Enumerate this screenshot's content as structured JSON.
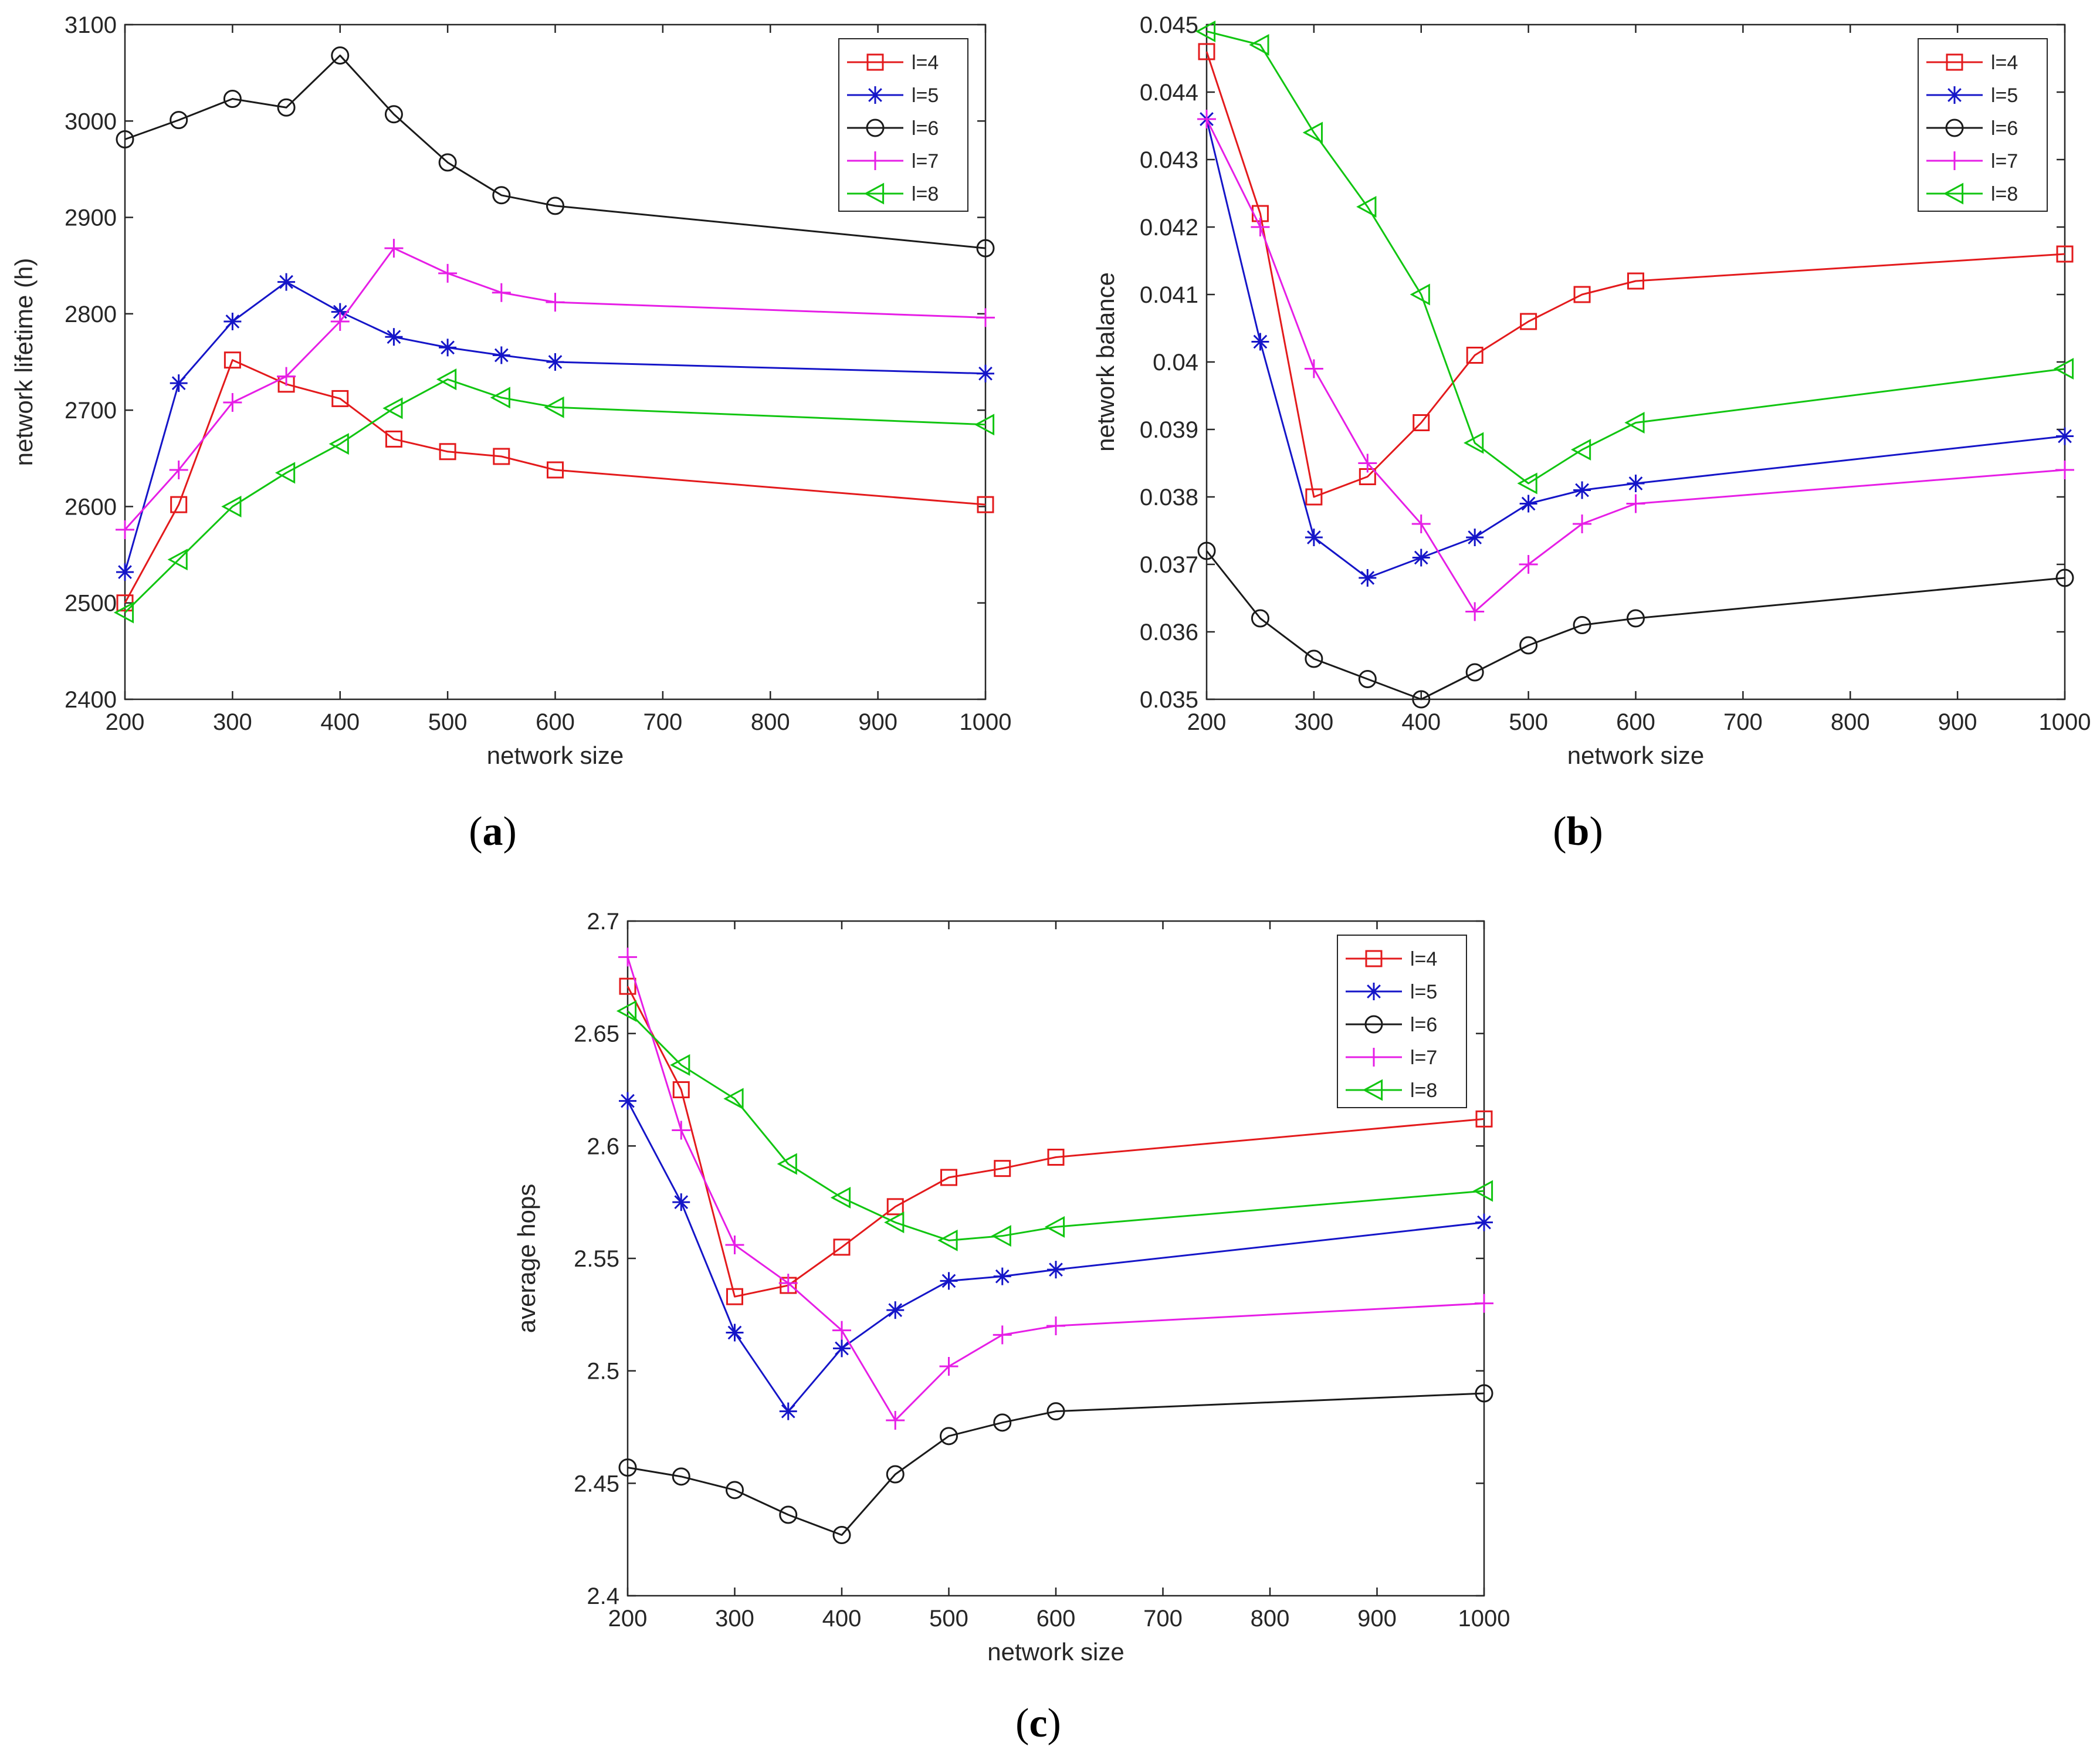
{
  "chart_data": [
    {
      "id": "a",
      "type": "line",
      "caption": "a",
      "xlabel": "network size",
      "ylabel": "network lifetime (h)",
      "xlim": [
        200,
        1000
      ],
      "ylim": [
        2400,
        3100
      ],
      "xticks": [
        200,
        300,
        400,
        500,
        600,
        700,
        800,
        900,
        1000
      ],
      "yticks": [
        2400,
        2500,
        2600,
        2700,
        2800,
        2900,
        3000,
        3100
      ],
      "ytick_labels": [
        "2400",
        "2500",
        "2600",
        "2700",
        "2800",
        "2900",
        "3000",
        "3100"
      ],
      "legend": "top-right",
      "x": [
        200,
        250,
        300,
        350,
        400,
        450,
        500,
        550,
        600,
        1000
      ],
      "series": [
        {
          "name": "l=4",
          "color": "#e31a1c",
          "marker": "square",
          "values": [
            2500,
            2602,
            2752,
            2727,
            2712,
            2670,
            2657,
            2652,
            2638,
            2602
          ]
        },
        {
          "name": "l=5",
          "color": "#1515c8",
          "marker": "star",
          "values": [
            2532,
            2728,
            2792,
            2833,
            2802,
            2776,
            2765,
            2757,
            2750,
            2738
          ]
        },
        {
          "name": "l=6",
          "color": "#1a1a1a",
          "marker": "circle",
          "values": [
            2981,
            3001,
            3023,
            3014,
            3068,
            3007,
            2957,
            2923,
            2912,
            2868
          ]
        },
        {
          "name": "l=7",
          "color": "#e61ee6",
          "marker": "plus",
          "values": [
            2576,
            2638,
            2708,
            2735,
            2792,
            2868,
            2842,
            2822,
            2812,
            2796
          ]
        },
        {
          "name": "l=8",
          "color": "#11c511",
          "marker": "triangle-left",
          "values": [
            2490,
            2545,
            2600,
            2635,
            2665,
            2702,
            2732,
            2713,
            2703,
            2685
          ]
        }
      ]
    },
    {
      "id": "b",
      "type": "line",
      "caption": "b",
      "xlabel": "network size",
      "ylabel": "network balance",
      "xlim": [
        200,
        1000
      ],
      "ylim": [
        0.035,
        0.045
      ],
      "xticks": [
        200,
        300,
        400,
        500,
        600,
        700,
        800,
        900,
        1000
      ],
      "yticks": [
        0.035,
        0.036,
        0.037,
        0.038,
        0.039,
        0.04,
        0.041,
        0.042,
        0.043,
        0.044,
        0.045
      ],
      "ytick_labels": [
        "0.035",
        "0.036",
        "0.037",
        "0.038",
        "0.039",
        "0.04",
        "0.041",
        "0.042",
        "0.043",
        "0.044",
        "0.045"
      ],
      "legend": "top-right",
      "x": [
        200,
        250,
        300,
        350,
        400,
        450,
        500,
        550,
        600,
        1000
      ],
      "series": [
        {
          "name": "l=4",
          "color": "#e31a1c",
          "marker": "square",
          "values": [
            0.0446,
            0.0422,
            0.038,
            0.0383,
            0.0391,
            0.0401,
            0.0406,
            0.041,
            0.0412,
            0.0416
          ]
        },
        {
          "name": "l=5",
          "color": "#1515c8",
          "marker": "star",
          "values": [
            0.0436,
            0.0403,
            0.0374,
            0.0368,
            0.0371,
            0.0374,
            0.0379,
            0.0381,
            0.0382,
            0.0389
          ]
        },
        {
          "name": "l=6",
          "color": "#1a1a1a",
          "marker": "circle",
          "values": [
            0.0372,
            0.0362,
            0.0356,
            0.0353,
            0.035,
            0.0354,
            0.0358,
            0.0361,
            0.0362,
            0.0368
          ]
        },
        {
          "name": "l=7",
          "color": "#e61ee6",
          "marker": "plus",
          "values": [
            0.0436,
            0.042,
            0.0399,
            0.0385,
            0.0376,
            0.0363,
            0.037,
            0.0376,
            0.0379,
            0.0384
          ]
        },
        {
          "name": "l=8",
          "color": "#11c511",
          "marker": "triangle-left",
          "values": [
            0.0449,
            0.0447,
            0.0434,
            0.0423,
            0.041,
            0.0388,
            0.0382,
            0.0387,
            0.0391,
            0.0399
          ]
        }
      ]
    },
    {
      "id": "c",
      "type": "line",
      "caption": "c",
      "xlabel": "network size",
      "ylabel": "average hops",
      "xlim": [
        200,
        1000
      ],
      "ylim": [
        2.4,
        2.7
      ],
      "xticks": [
        200,
        300,
        400,
        500,
        600,
        700,
        800,
        900,
        1000
      ],
      "yticks": [
        2.4,
        2.45,
        2.5,
        2.55,
        2.6,
        2.65,
        2.7
      ],
      "ytick_labels": [
        "2.4",
        "2.45",
        "2.5",
        "2.55",
        "2.6",
        "2.65",
        "2.7"
      ],
      "legend": "top-right",
      "x": [
        200,
        250,
        300,
        350,
        400,
        450,
        500,
        550,
        600,
        1000
      ],
      "series": [
        {
          "name": "l=4",
          "color": "#e31a1c",
          "marker": "square",
          "values": [
            2.671,
            2.625,
            2.533,
            2.538,
            2.555,
            2.573,
            2.586,
            2.59,
            2.595,
            2.612
          ]
        },
        {
          "name": "l=5",
          "color": "#1515c8",
          "marker": "star",
          "values": [
            2.62,
            2.575,
            2.517,
            2.482,
            2.51,
            2.527,
            2.54,
            2.542,
            2.545,
            2.566
          ]
        },
        {
          "name": "l=6",
          "color": "#1a1a1a",
          "marker": "circle",
          "values": [
            2.457,
            2.453,
            2.447,
            2.436,
            2.427,
            2.454,
            2.471,
            2.477,
            2.482,
            2.49
          ]
        },
        {
          "name": "l=7",
          "color": "#e61ee6",
          "marker": "plus",
          "values": [
            2.684,
            2.607,
            2.556,
            2.539,
            2.518,
            2.478,
            2.502,
            2.516,
            2.52,
            2.53
          ]
        },
        {
          "name": "l=8",
          "color": "#11c511",
          "marker": "triangle-left",
          "values": [
            2.66,
            2.636,
            2.621,
            2.592,
            2.577,
            2.566,
            2.558,
            2.56,
            2.564,
            2.58
          ]
        }
      ]
    }
  ]
}
